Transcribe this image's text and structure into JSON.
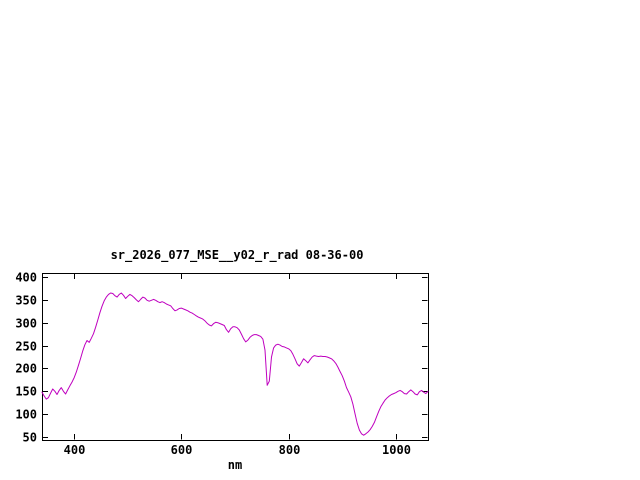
{
  "page": {
    "background": "#ffffff"
  },
  "chart_data": {
    "type": "line",
    "title": "sr_2026_077_MSE__y02_r_rad 08-36-00",
    "xlabel": "nm",
    "ylabel": "",
    "xlim": [
      340,
      1060
    ],
    "ylim": [
      50,
      400
    ],
    "x_ticks": [
      400,
      600,
      800,
      1000
    ],
    "y_ticks": [
      400,
      350,
      300,
      250,
      200,
      150,
      100,
      50
    ],
    "grid": false,
    "legend": "none",
    "border_color": "#000000",
    "series": [
      {
        "name": "sr_2026_077_MSE__y02_r_rad",
        "color": "#bf00bf",
        "points": [
          [
            340,
            148
          ],
          [
            344,
            140
          ],
          [
            348,
            133
          ],
          [
            352,
            136
          ],
          [
            356,
            146
          ],
          [
            360,
            155
          ],
          [
            364,
            150
          ],
          [
            368,
            143
          ],
          [
            372,
            152
          ],
          [
            376,
            158
          ],
          [
            380,
            150
          ],
          [
            384,
            144
          ],
          [
            388,
            153
          ],
          [
            392,
            162
          ],
          [
            396,
            170
          ],
          [
            400,
            180
          ],
          [
            404,
            192
          ],
          [
            408,
            207
          ],
          [
            412,
            222
          ],
          [
            416,
            238
          ],
          [
            420,
            252
          ],
          [
            424,
            261
          ],
          [
            428,
            257
          ],
          [
            432,
            266
          ],
          [
            436,
            276
          ],
          [
            440,
            290
          ],
          [
            444,
            306
          ],
          [
            448,
            322
          ],
          [
            452,
            336
          ],
          [
            456,
            348
          ],
          [
            460,
            356
          ],
          [
            464,
            362
          ],
          [
            468,
            365
          ],
          [
            472,
            364
          ],
          [
            476,
            359
          ],
          [
            480,
            356
          ],
          [
            484,
            362
          ],
          [
            488,
            365
          ],
          [
            492,
            360
          ],
          [
            496,
            353
          ],
          [
            500,
            358
          ],
          [
            504,
            362
          ],
          [
            508,
            359
          ],
          [
            512,
            355
          ],
          [
            516,
            350
          ],
          [
            520,
            346
          ],
          [
            524,
            351
          ],
          [
            528,
            356
          ],
          [
            532,
            354
          ],
          [
            536,
            349
          ],
          [
            540,
            347
          ],
          [
            544,
            349
          ],
          [
            548,
            351
          ],
          [
            552,
            349
          ],
          [
            556,
            346
          ],
          [
            560,
            344
          ],
          [
            564,
            346
          ],
          [
            568,
            344
          ],
          [
            572,
            341
          ],
          [
            576,
            339
          ],
          [
            580,
            337
          ],
          [
            584,
            331
          ],
          [
            588,
            326
          ],
          [
            592,
            328
          ],
          [
            596,
            331
          ],
          [
            600,
            332
          ],
          [
            604,
            330
          ],
          [
            608,
            328
          ],
          [
            612,
            326
          ],
          [
            616,
            323
          ],
          [
            620,
            321
          ],
          [
            624,
            318
          ],
          [
            628,
            315
          ],
          [
            632,
            312
          ],
          [
            636,
            310
          ],
          [
            640,
            308
          ],
          [
            644,
            304
          ],
          [
            648,
            299
          ],
          [
            652,
            295
          ],
          [
            656,
            293
          ],
          [
            660,
            298
          ],
          [
            664,
            301
          ],
          [
            668,
            300
          ],
          [
            672,
            298
          ],
          [
            676,
            296
          ],
          [
            680,
            294
          ],
          [
            684,
            285
          ],
          [
            688,
            279
          ],
          [
            692,
            287
          ],
          [
            696,
            291
          ],
          [
            700,
            291
          ],
          [
            704,
            289
          ],
          [
            708,
            284
          ],
          [
            712,
            275
          ],
          [
            716,
            265
          ],
          [
            720,
            258
          ],
          [
            724,
            262
          ],
          [
            728,
            268
          ],
          [
            732,
            272
          ],
          [
            736,
            274
          ],
          [
            740,
            274
          ],
          [
            744,
            272
          ],
          [
            748,
            270
          ],
          [
            752,
            264
          ],
          [
            756,
            240
          ],
          [
            760,
            163
          ],
          [
            764,
            172
          ],
          [
            768,
            225
          ],
          [
            772,
            245
          ],
          [
            776,
            251
          ],
          [
            780,
            253
          ],
          [
            784,
            251
          ],
          [
            788,
            248
          ],
          [
            792,
            247
          ],
          [
            796,
            245
          ],
          [
            800,
            243
          ],
          [
            804,
            239
          ],
          [
            808,
            231
          ],
          [
            812,
            221
          ],
          [
            816,
            210
          ],
          [
            820,
            205
          ],
          [
            824,
            213
          ],
          [
            828,
            221
          ],
          [
            832,
            217
          ],
          [
            836,
            212
          ],
          [
            840,
            219
          ],
          [
            844,
            225
          ],
          [
            848,
            228
          ],
          [
            852,
            227
          ],
          [
            856,
            226
          ],
          [
            860,
            227
          ],
          [
            864,
            226
          ],
          [
            868,
            226
          ],
          [
            872,
            225
          ],
          [
            876,
            223
          ],
          [
            880,
            221
          ],
          [
            884,
            217
          ],
          [
            888,
            211
          ],
          [
            892,
            203
          ],
          [
            896,
            193
          ],
          [
            900,
            184
          ],
          [
            904,
            172
          ],
          [
            908,
            158
          ],
          [
            912,
            148
          ],
          [
            916,
            138
          ],
          [
            920,
            122
          ],
          [
            924,
            100
          ],
          [
            928,
            80
          ],
          [
            932,
            65
          ],
          [
            936,
            57
          ],
          [
            940,
            54
          ],
          [
            944,
            57
          ],
          [
            948,
            61
          ],
          [
            952,
            66
          ],
          [
            956,
            73
          ],
          [
            960,
            82
          ],
          [
            964,
            94
          ],
          [
            968,
            106
          ],
          [
            972,
            116
          ],
          [
            976,
            124
          ],
          [
            980,
            131
          ],
          [
            984,
            136
          ],
          [
            988,
            140
          ],
          [
            992,
            143
          ],
          [
            996,
            145
          ],
          [
            1000,
            147
          ],
          [
            1004,
            150
          ],
          [
            1008,
            152
          ],
          [
            1012,
            149
          ],
          [
            1016,
            145
          ],
          [
            1020,
            144
          ],
          [
            1024,
            149
          ],
          [
            1028,
            153
          ],
          [
            1032,
            149
          ],
          [
            1036,
            144
          ],
          [
            1040,
            142
          ],
          [
            1044,
            149
          ],
          [
            1048,
            152
          ],
          [
            1052,
            148
          ],
          [
            1056,
            145
          ],
          [
            1060,
            150
          ]
        ]
      }
    ]
  }
}
